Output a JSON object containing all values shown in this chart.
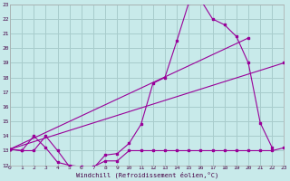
{
  "background_color": "#c8eaea",
  "grid_color": "#a8cccc",
  "line_color": "#990099",
  "xlim": [
    0,
    23
  ],
  "ylim": [
    12,
    23
  ],
  "yticks": [
    12,
    13,
    14,
    15,
    16,
    17,
    18,
    19,
    20,
    21,
    22,
    23
  ],
  "xticks": [
    0,
    1,
    2,
    3,
    4,
    5,
    6,
    7,
    8,
    9,
    10,
    11,
    12,
    13,
    14,
    15,
    16,
    17,
    18,
    19,
    20,
    21,
    22,
    23
  ],
  "xlabel": "Windchill (Refroidissement éolien,°C)",
  "curve1_x": [
    0,
    1,
    2,
    3,
    4,
    5,
    6,
    7,
    8,
    9,
    10,
    11,
    12,
    13,
    14,
    15,
    16,
    17,
    18,
    19,
    20,
    21,
    22
  ],
  "curve1_y": [
    13.1,
    13.0,
    13.0,
    14.0,
    13.0,
    11.9,
    11.8,
    11.8,
    12.7,
    12.8,
    13.5,
    14.8,
    17.6,
    18.0,
    20.5,
    23.1,
    23.3,
    22.0,
    21.6,
    20.8,
    19.0,
    14.9,
    13.2
  ],
  "curve2_x": [
    0,
    1,
    2,
    3,
    4,
    5,
    6,
    7,
    8,
    9,
    10,
    11,
    12,
    13,
    14,
    15,
    16,
    17,
    18,
    19,
    20,
    21,
    22,
    23
  ],
  "curve2_y": [
    13.1,
    13.0,
    14.0,
    13.2,
    12.2,
    12.0,
    11.9,
    11.9,
    12.3,
    12.3,
    13.0,
    13.0,
    13.0,
    13.0,
    13.0,
    13.0,
    13.0,
    13.0,
    13.0,
    13.0,
    13.0,
    13.0,
    13.0,
    13.2
  ],
  "line3_x": [
    0,
    20
  ],
  "line3_y": [
    13.1,
    20.7
  ],
  "line4_x": [
    0,
    23
  ],
  "line4_y": [
    13.1,
    19.0
  ]
}
